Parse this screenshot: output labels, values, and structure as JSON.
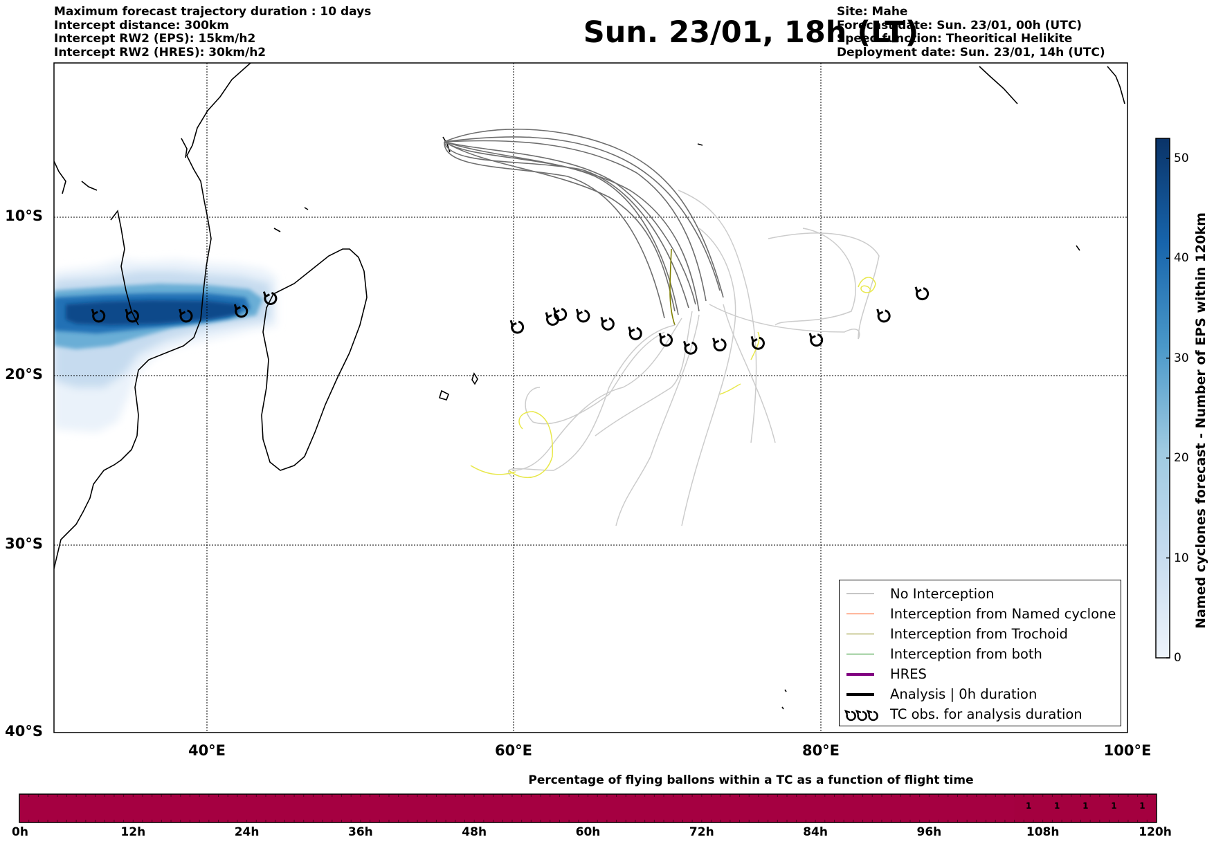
{
  "header_left": [
    "Maximum forecast trajectory duration : 10 days",
    "Intercept distance: 300km",
    "Intercept RW2 (EPS):  15km/h2",
    "Intercept RW2 (HRES): 30km/h2"
  ],
  "title": "Sun. 23/01, 18h (LT)",
  "header_right": [
    "Site: Mahe",
    "Forecast date: Sun. 23/01, 00h (UTC)",
    "Speed function: Theoritical Helikite",
    "Deployment date: Sun. 23/01, 14h (UTC)"
  ],
  "map": {
    "lon_range": [
      30,
      100
    ],
    "lat_range": [
      -40,
      0
    ],
    "lon_ticks": [
      "40°E",
      "60°E",
      "80°E",
      "100°E"
    ],
    "lat_ticks": [
      "10°S",
      "20°S",
      "30°S",
      "40°S"
    ],
    "gridlines": true,
    "tc_obs": [
      [
        32.9,
        -16.3
      ],
      [
        35.1,
        -16.3
      ],
      [
        38.6,
        -16.3
      ],
      [
        42.2,
        -16.0
      ],
      [
        44.1,
        -15.2
      ],
      [
        60.2,
        -17.0
      ],
      [
        62.5,
        -16.5
      ],
      [
        63.0,
        -16.2
      ],
      [
        64.5,
        -16.3
      ],
      [
        66.1,
        -16.8
      ],
      [
        67.9,
        -17.4
      ],
      [
        69.9,
        -17.8
      ],
      [
        71.5,
        -18.3
      ],
      [
        73.4,
        -18.1
      ],
      [
        75.9,
        -18.0
      ],
      [
        79.7,
        -17.8
      ],
      [
        84.1,
        -16.3
      ],
      [
        86.6,
        -14.9
      ]
    ]
  },
  "colorbar": {
    "label": "Named cyclones forecast - Number of EPS within 120km",
    "ticks": [
      "0",
      "10",
      "20",
      "30",
      "40",
      "50"
    ],
    "range": [
      0,
      52
    ]
  },
  "legend": {
    "items": [
      {
        "label": "No Interception",
        "color": "#888888",
        "width": 1.5
      },
      {
        "label": "Interception from Named cyclone",
        "color": "#ff4500",
        "width": 1.5
      },
      {
        "label": "Interception from Trochoid",
        "color": "#808000",
        "width": 1.5
      },
      {
        "label": "Interception from both",
        "color": "#008000",
        "width": 1.5
      },
      {
        "label": "HRES",
        "color": "#800080",
        "width": 4
      },
      {
        "label": "Analysis | 0h duration",
        "color": "#000000",
        "width": 4
      },
      {
        "label": "TC obs. for analysis duration",
        "color": "#000000",
        "width": 0
      }
    ]
  },
  "progress_bar": {
    "title": "Percentage of flying ballons within a TC as a function of flight time",
    "ticks": [
      "0h",
      "12h",
      "24h",
      "36h",
      "48h",
      "60h",
      "72h",
      "84h",
      "96h",
      "108h",
      "120h"
    ],
    "max_hours": 120,
    "fill_color": "#a50041",
    "late_color": "#a4003f",
    "late_start_hours": 105,
    "values": [
      "1",
      "1",
      "1",
      "1",
      "1"
    ]
  }
}
